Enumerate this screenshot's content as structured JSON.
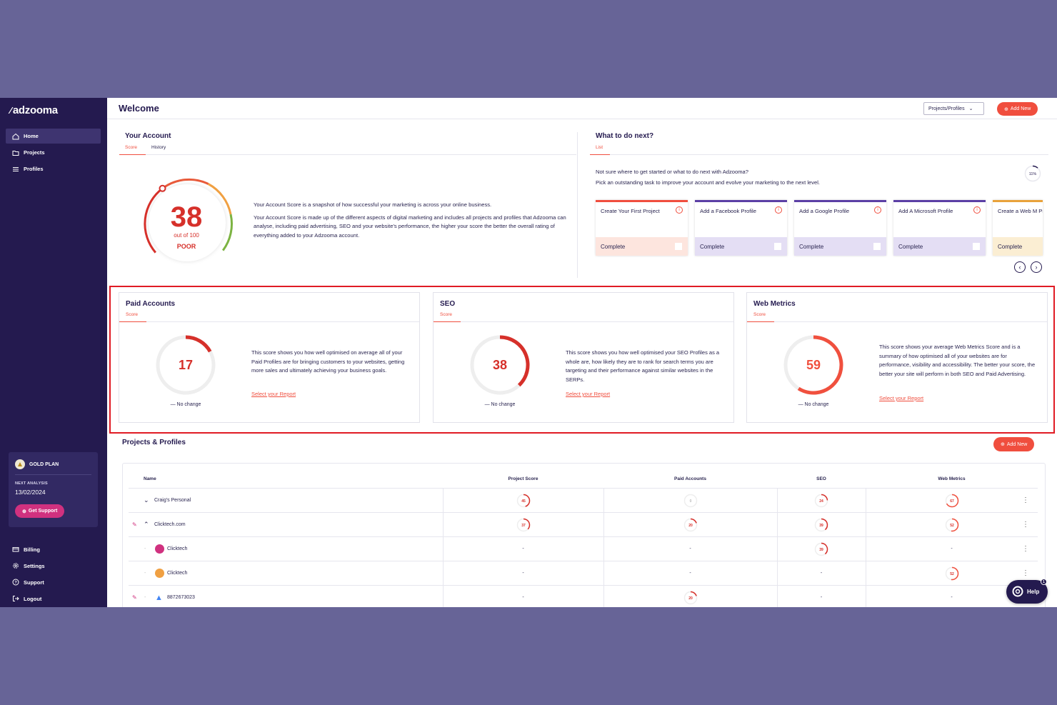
{
  "sidebar": {
    "logo": "adzooma",
    "nav": [
      {
        "label": "Home",
        "icon": "home-icon",
        "active": true
      },
      {
        "label": "Projects",
        "icon": "folder-icon"
      },
      {
        "label": "Profiles",
        "icon": "list-icon"
      }
    ],
    "plan": {
      "name": "GOLD PLAN",
      "next_label": "NEXT ANALYSIS",
      "next_date": "13/02/2024",
      "support_label": "Get Support"
    },
    "bottom_nav": [
      {
        "label": "Billing",
        "icon": "billing-icon"
      },
      {
        "label": "Settings",
        "icon": "gear-icon"
      },
      {
        "label": "Support",
        "icon": "help-circle-icon"
      },
      {
        "label": "Logout",
        "icon": "logout-icon"
      }
    ]
  },
  "header": {
    "title": "Welcome",
    "select_label": "Projects/Profiles",
    "add_new": "Add New"
  },
  "account": {
    "title": "Your Account",
    "tabs": [
      "Score",
      "History"
    ],
    "score": "38",
    "score_sub": "out of 100",
    "rating": "POOR",
    "text1": "Your Account Score is a snapshot of how successful your marketing is across your online business.",
    "text2": "Your Account Score is made up of the different aspects of digital marketing and includes all projects and profiles that Adzooma can analyse, including paid advertising, SEO and your website's performance, the higher your score the better the overall rating of everything added to your Adzooma account."
  },
  "next": {
    "title": "What to do next?",
    "tab": "List",
    "line1": "Not sure where to get started or what to do next with Adzooma?",
    "line2": "Pick an outstanding task to improve your account and evolve your marketing to the next level.",
    "progress": "11%",
    "tasks": [
      {
        "title": "Create Your First Project",
        "status": "Complete",
        "color": "#f04e3e",
        "foot": "#fde5de"
      },
      {
        "title": "Add a Facebook Profile",
        "status": "Complete",
        "color": "#5b3fa5",
        "foot": "#e4def4"
      },
      {
        "title": "Add a Google Profile",
        "status": "Complete",
        "color": "#5b3fa5",
        "foot": "#e4def4"
      },
      {
        "title": "Add A Microsoft Profile",
        "status": "Complete",
        "color": "#5b3fa5",
        "foot": "#e4def4"
      },
      {
        "title": "Create a Web M Profile",
        "status": "Complete",
        "color": "#e9a23b",
        "foot": "#fbeed3"
      }
    ]
  },
  "scores": [
    {
      "title": "Paid Accounts",
      "tab": "Score",
      "value": "17",
      "fraction": 0.17,
      "change": "— No change",
      "text": "This score shows you how well optimised on average all of your Paid Profiles are for bringing customers to your websites, getting more sales and ultimately achieving your business goals.",
      "link": "Select your Report"
    },
    {
      "title": "SEO",
      "tab": "Score",
      "value": "38",
      "fraction": 0.38,
      "change": "— No change",
      "text": "This score shows you how well optimised your SEO Profiles as a whole are, how likely they are to rank for search terms you are targeting and their performance against similar websites in the SERPs.",
      "link": "Select your Report"
    },
    {
      "title": "Web Metrics",
      "tab": "Score",
      "value": "59",
      "fraction": 0.59,
      "change": "— No change",
      "text": "This score shows your average Web Metrics Score and is a summary of how optimised all of your websites are for performance, visibility and accessibility. The better your score, the better your site will perform in both SEO and Paid Advertising.",
      "link": "Select your Report"
    }
  ],
  "projects": {
    "title": "Projects & Profiles",
    "add_new": "Add New",
    "columns": [
      "Name",
      "Project Score",
      "Paid Accounts",
      "SEO",
      "Web Metrics"
    ],
    "rows": [
      {
        "name": "Craig's Personal",
        "project": "45",
        "paid": "0",
        "seo": "24",
        "web": "67",
        "chev": "v"
      },
      {
        "name": "Clicktech.com",
        "project": "37",
        "paid": "20",
        "seo": "39",
        "web": "52",
        "chev": "^"
      },
      {
        "name": "Clicktech",
        "project": "-",
        "paid": "-",
        "seo": "39",
        "web": "-"
      },
      {
        "name": "Clicktech",
        "project": "-",
        "paid": "-",
        "seo": "-",
        "web": "52"
      },
      {
        "name": "8872673023",
        "project": "-",
        "paid": "20",
        "seo": "-",
        "web": "-"
      }
    ]
  },
  "help": {
    "label": "Help",
    "count": "1"
  }
}
